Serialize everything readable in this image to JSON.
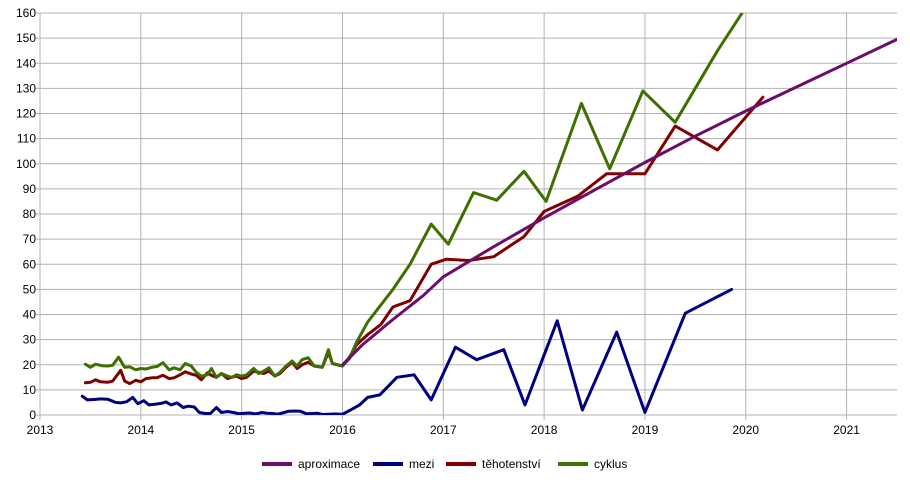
{
  "chart_data": {
    "type": "line",
    "title": "",
    "xlabel": "",
    "ylabel": "",
    "xlim": [
      2013,
      2021.5
    ],
    "ylim": [
      0,
      160
    ],
    "x_ticks": [
      2013,
      2014,
      2015,
      2016,
      2017,
      2018,
      2019,
      2020,
      2021
    ],
    "y_ticks": [
      0,
      10,
      20,
      30,
      40,
      50,
      60,
      70,
      80,
      90,
      100,
      110,
      120,
      130,
      140,
      150,
      160
    ],
    "grid": true,
    "legend_position": "bottom",
    "series": [
      {
        "name": "aproximace",
        "color": "#6b0d6b",
        "points": [
          [
            2016.0,
            20.0
          ],
          [
            2016.2,
            28.0
          ],
          [
            2016.5,
            38.0
          ],
          [
            2016.8,
            47.5
          ],
          [
            2017.0,
            55.0
          ],
          [
            2017.5,
            67.0
          ],
          [
            2018.0,
            78.5
          ],
          [
            2018.5,
            89.5
          ],
          [
            2019.0,
            100.5
          ],
          [
            2019.5,
            111.0
          ],
          [
            2020.0,
            121.0
          ],
          [
            2020.5,
            130.5
          ],
          [
            2021.0,
            140.0
          ],
          [
            2021.5,
            149.5
          ]
        ]
      },
      {
        "name": "mezi",
        "color": "#000080",
        "points": [
          [
            2013.42,
            7.5
          ],
          [
            2013.47,
            6.0
          ],
          [
            2013.55,
            6.2
          ],
          [
            2013.6,
            6.4
          ],
          [
            2013.67,
            6.3
          ],
          [
            2013.75,
            5.0
          ],
          [
            2013.8,
            4.8
          ],
          [
            2013.86,
            5.3
          ],
          [
            2013.92,
            7.0
          ],
          [
            2013.97,
            4.5
          ],
          [
            2014.03,
            5.7
          ],
          [
            2014.08,
            4.0
          ],
          [
            2014.14,
            4.3
          ],
          [
            2014.2,
            4.6
          ],
          [
            2014.25,
            5.2
          ],
          [
            2014.3,
            4.0
          ],
          [
            2014.36,
            4.8
          ],
          [
            2014.42,
            3.0
          ],
          [
            2014.47,
            3.5
          ],
          [
            2014.53,
            3.2
          ],
          [
            2014.58,
            1.0
          ],
          [
            2014.64,
            0.6
          ],
          [
            2014.69,
            0.6
          ],
          [
            2014.75,
            3.0
          ],
          [
            2014.8,
            1.0
          ],
          [
            2014.86,
            1.4
          ],
          [
            2014.92,
            1.0
          ],
          [
            2014.97,
            0.5
          ],
          [
            2015.03,
            0.7
          ],
          [
            2015.08,
            0.8
          ],
          [
            2015.14,
            0.4
          ],
          [
            2015.2,
            1.0
          ],
          [
            2015.25,
            0.7
          ],
          [
            2015.31,
            0.6
          ],
          [
            2015.36,
            0.3
          ],
          [
            2015.42,
            1.0
          ],
          [
            2015.47,
            1.5
          ],
          [
            2015.53,
            1.6
          ],
          [
            2015.58,
            1.5
          ],
          [
            2015.64,
            0.5
          ],
          [
            2015.7,
            0.6
          ],
          [
            2015.75,
            0.7
          ],
          [
            2015.8,
            0.2
          ],
          [
            2015.86,
            0.3
          ],
          [
            2015.92,
            0.4
          ],
          [
            2016.0,
            0.3
          ],
          [
            2016.08,
            2.0
          ],
          [
            2016.17,
            4.0
          ],
          [
            2016.25,
            7.0
          ],
          [
            2016.37,
            8.0
          ],
          [
            2016.54,
            15.0
          ],
          [
            2016.71,
            16.0
          ],
          [
            2016.88,
            6.0
          ],
          [
            2017.12,
            27.0
          ],
          [
            2017.33,
            22.0
          ],
          [
            2017.6,
            26.0
          ],
          [
            2017.81,
            4.0
          ],
          [
            2018.13,
            37.5
          ],
          [
            2018.38,
            2.0
          ],
          [
            2018.72,
            33.0
          ],
          [
            2019.0,
            1.0
          ],
          [
            2019.4,
            40.5
          ],
          [
            2019.86,
            50.0
          ]
        ]
      },
      {
        "name": "těhotenství",
        "color": "#800000",
        "points": [
          [
            2013.45,
            12.8
          ],
          [
            2013.5,
            13.0
          ],
          [
            2013.55,
            14.0
          ],
          [
            2013.6,
            13.2
          ],
          [
            2013.67,
            13.0
          ],
          [
            2013.72,
            13.5
          ],
          [
            2013.8,
            17.8
          ],
          [
            2013.84,
            13.5
          ],
          [
            2013.89,
            12.5
          ],
          [
            2013.95,
            13.8
          ],
          [
            2014.0,
            13.2
          ],
          [
            2014.05,
            14.5
          ],
          [
            2014.11,
            14.8
          ],
          [
            2014.16,
            14.8
          ],
          [
            2014.22,
            15.8
          ],
          [
            2014.28,
            14.5
          ],
          [
            2014.33,
            14.8
          ],
          [
            2014.39,
            16.0
          ],
          [
            2014.44,
            17.2
          ],
          [
            2014.5,
            16.3
          ],
          [
            2014.55,
            15.8
          ],
          [
            2014.6,
            14.0
          ],
          [
            2014.66,
            16.8
          ],
          [
            2014.7,
            15.8
          ],
          [
            2014.75,
            15.0
          ],
          [
            2014.8,
            16.5
          ],
          [
            2014.86,
            14.5
          ],
          [
            2014.9,
            15.0
          ],
          [
            2014.95,
            15.5
          ],
          [
            2015.0,
            14.5
          ],
          [
            2015.05,
            15.0
          ],
          [
            2015.12,
            17.5
          ],
          [
            2015.17,
            17.0
          ],
          [
            2015.22,
            16.5
          ],
          [
            2015.27,
            17.5
          ],
          [
            2015.33,
            15.5
          ],
          [
            2015.38,
            16.5
          ],
          [
            2015.44,
            19.0
          ],
          [
            2015.5,
            21.0
          ],
          [
            2015.55,
            18.5
          ],
          [
            2015.6,
            20.0
          ],
          [
            2015.66,
            21.0
          ],
          [
            2015.72,
            19.5
          ],
          [
            2015.8,
            19.0
          ],
          [
            2015.86,
            25.0
          ],
          [
            2015.9,
            20.5
          ],
          [
            2016.0,
            19.5
          ],
          [
            2016.07,
            23.0
          ],
          [
            2016.14,
            28.0
          ],
          [
            2016.25,
            32.0
          ],
          [
            2016.38,
            36.0
          ],
          [
            2016.5,
            43.0
          ],
          [
            2016.67,
            45.5
          ],
          [
            2016.88,
            60.0
          ],
          [
            2017.03,
            62.0
          ],
          [
            2017.25,
            61.5
          ],
          [
            2017.5,
            63.0
          ],
          [
            2017.8,
            71.0
          ],
          [
            2018.0,
            81.0
          ],
          [
            2018.33,
            87.0
          ],
          [
            2018.62,
            96.0
          ],
          [
            2019.0,
            96.0
          ],
          [
            2019.3,
            115.0
          ],
          [
            2019.72,
            105.5
          ],
          [
            2020.17,
            126.5
          ]
        ]
      },
      {
        "name": "cyklus",
        "color": "#3f6f00",
        "points": [
          [
            2013.45,
            20.2
          ],
          [
            2013.5,
            19.0
          ],
          [
            2013.55,
            20.2
          ],
          [
            2013.62,
            19.6
          ],
          [
            2013.67,
            19.5
          ],
          [
            2013.72,
            19.8
          ],
          [
            2013.78,
            23.0
          ],
          [
            2013.84,
            19.0
          ],
          [
            2013.89,
            19.2
          ],
          [
            2013.95,
            18.0
          ],
          [
            2014.0,
            18.5
          ],
          [
            2014.05,
            18.3
          ],
          [
            2014.11,
            19.0
          ],
          [
            2014.16,
            19.3
          ],
          [
            2014.22,
            20.8
          ],
          [
            2014.28,
            18.0
          ],
          [
            2014.33,
            18.8
          ],
          [
            2014.39,
            18.0
          ],
          [
            2014.44,
            20.5
          ],
          [
            2014.5,
            19.5
          ],
          [
            2014.55,
            17.0
          ],
          [
            2014.6,
            15.5
          ],
          [
            2014.66,
            16.0
          ],
          [
            2014.7,
            18.5
          ],
          [
            2014.75,
            15.0
          ],
          [
            2014.8,
            16.5
          ],
          [
            2014.86,
            15.5
          ],
          [
            2014.9,
            15.0
          ],
          [
            2014.95,
            16.0
          ],
          [
            2015.0,
            15.5
          ],
          [
            2015.05,
            16.0
          ],
          [
            2015.12,
            18.5
          ],
          [
            2015.17,
            16.5
          ],
          [
            2015.22,
            17.5
          ],
          [
            2015.27,
            18.8
          ],
          [
            2015.33,
            15.5
          ],
          [
            2015.38,
            17.0
          ],
          [
            2015.44,
            19.5
          ],
          [
            2015.5,
            21.5
          ],
          [
            2015.55,
            19.5
          ],
          [
            2015.6,
            22.0
          ],
          [
            2015.66,
            22.8
          ],
          [
            2015.72,
            19.5
          ],
          [
            2015.8,
            19.0
          ],
          [
            2015.86,
            26.0
          ],
          [
            2015.9,
            20.5
          ],
          [
            2016.0,
            19.5
          ],
          [
            2016.07,
            22.5
          ],
          [
            2016.14,
            29.0
          ],
          [
            2016.25,
            37.0
          ],
          [
            2016.5,
            50.0
          ],
          [
            2016.67,
            60.0
          ],
          [
            2016.88,
            76.0
          ],
          [
            2017.05,
            68.0
          ],
          [
            2017.3,
            88.5
          ],
          [
            2017.53,
            85.5
          ],
          [
            2017.8,
            97.0
          ],
          [
            2018.02,
            85.0
          ],
          [
            2018.37,
            124.0
          ],
          [
            2018.65,
            98.0
          ],
          [
            2018.98,
            129.0
          ],
          [
            2019.3,
            116.5
          ],
          [
            2019.72,
            145.0
          ],
          [
            2019.98,
            161.0
          ]
        ]
      }
    ]
  }
}
